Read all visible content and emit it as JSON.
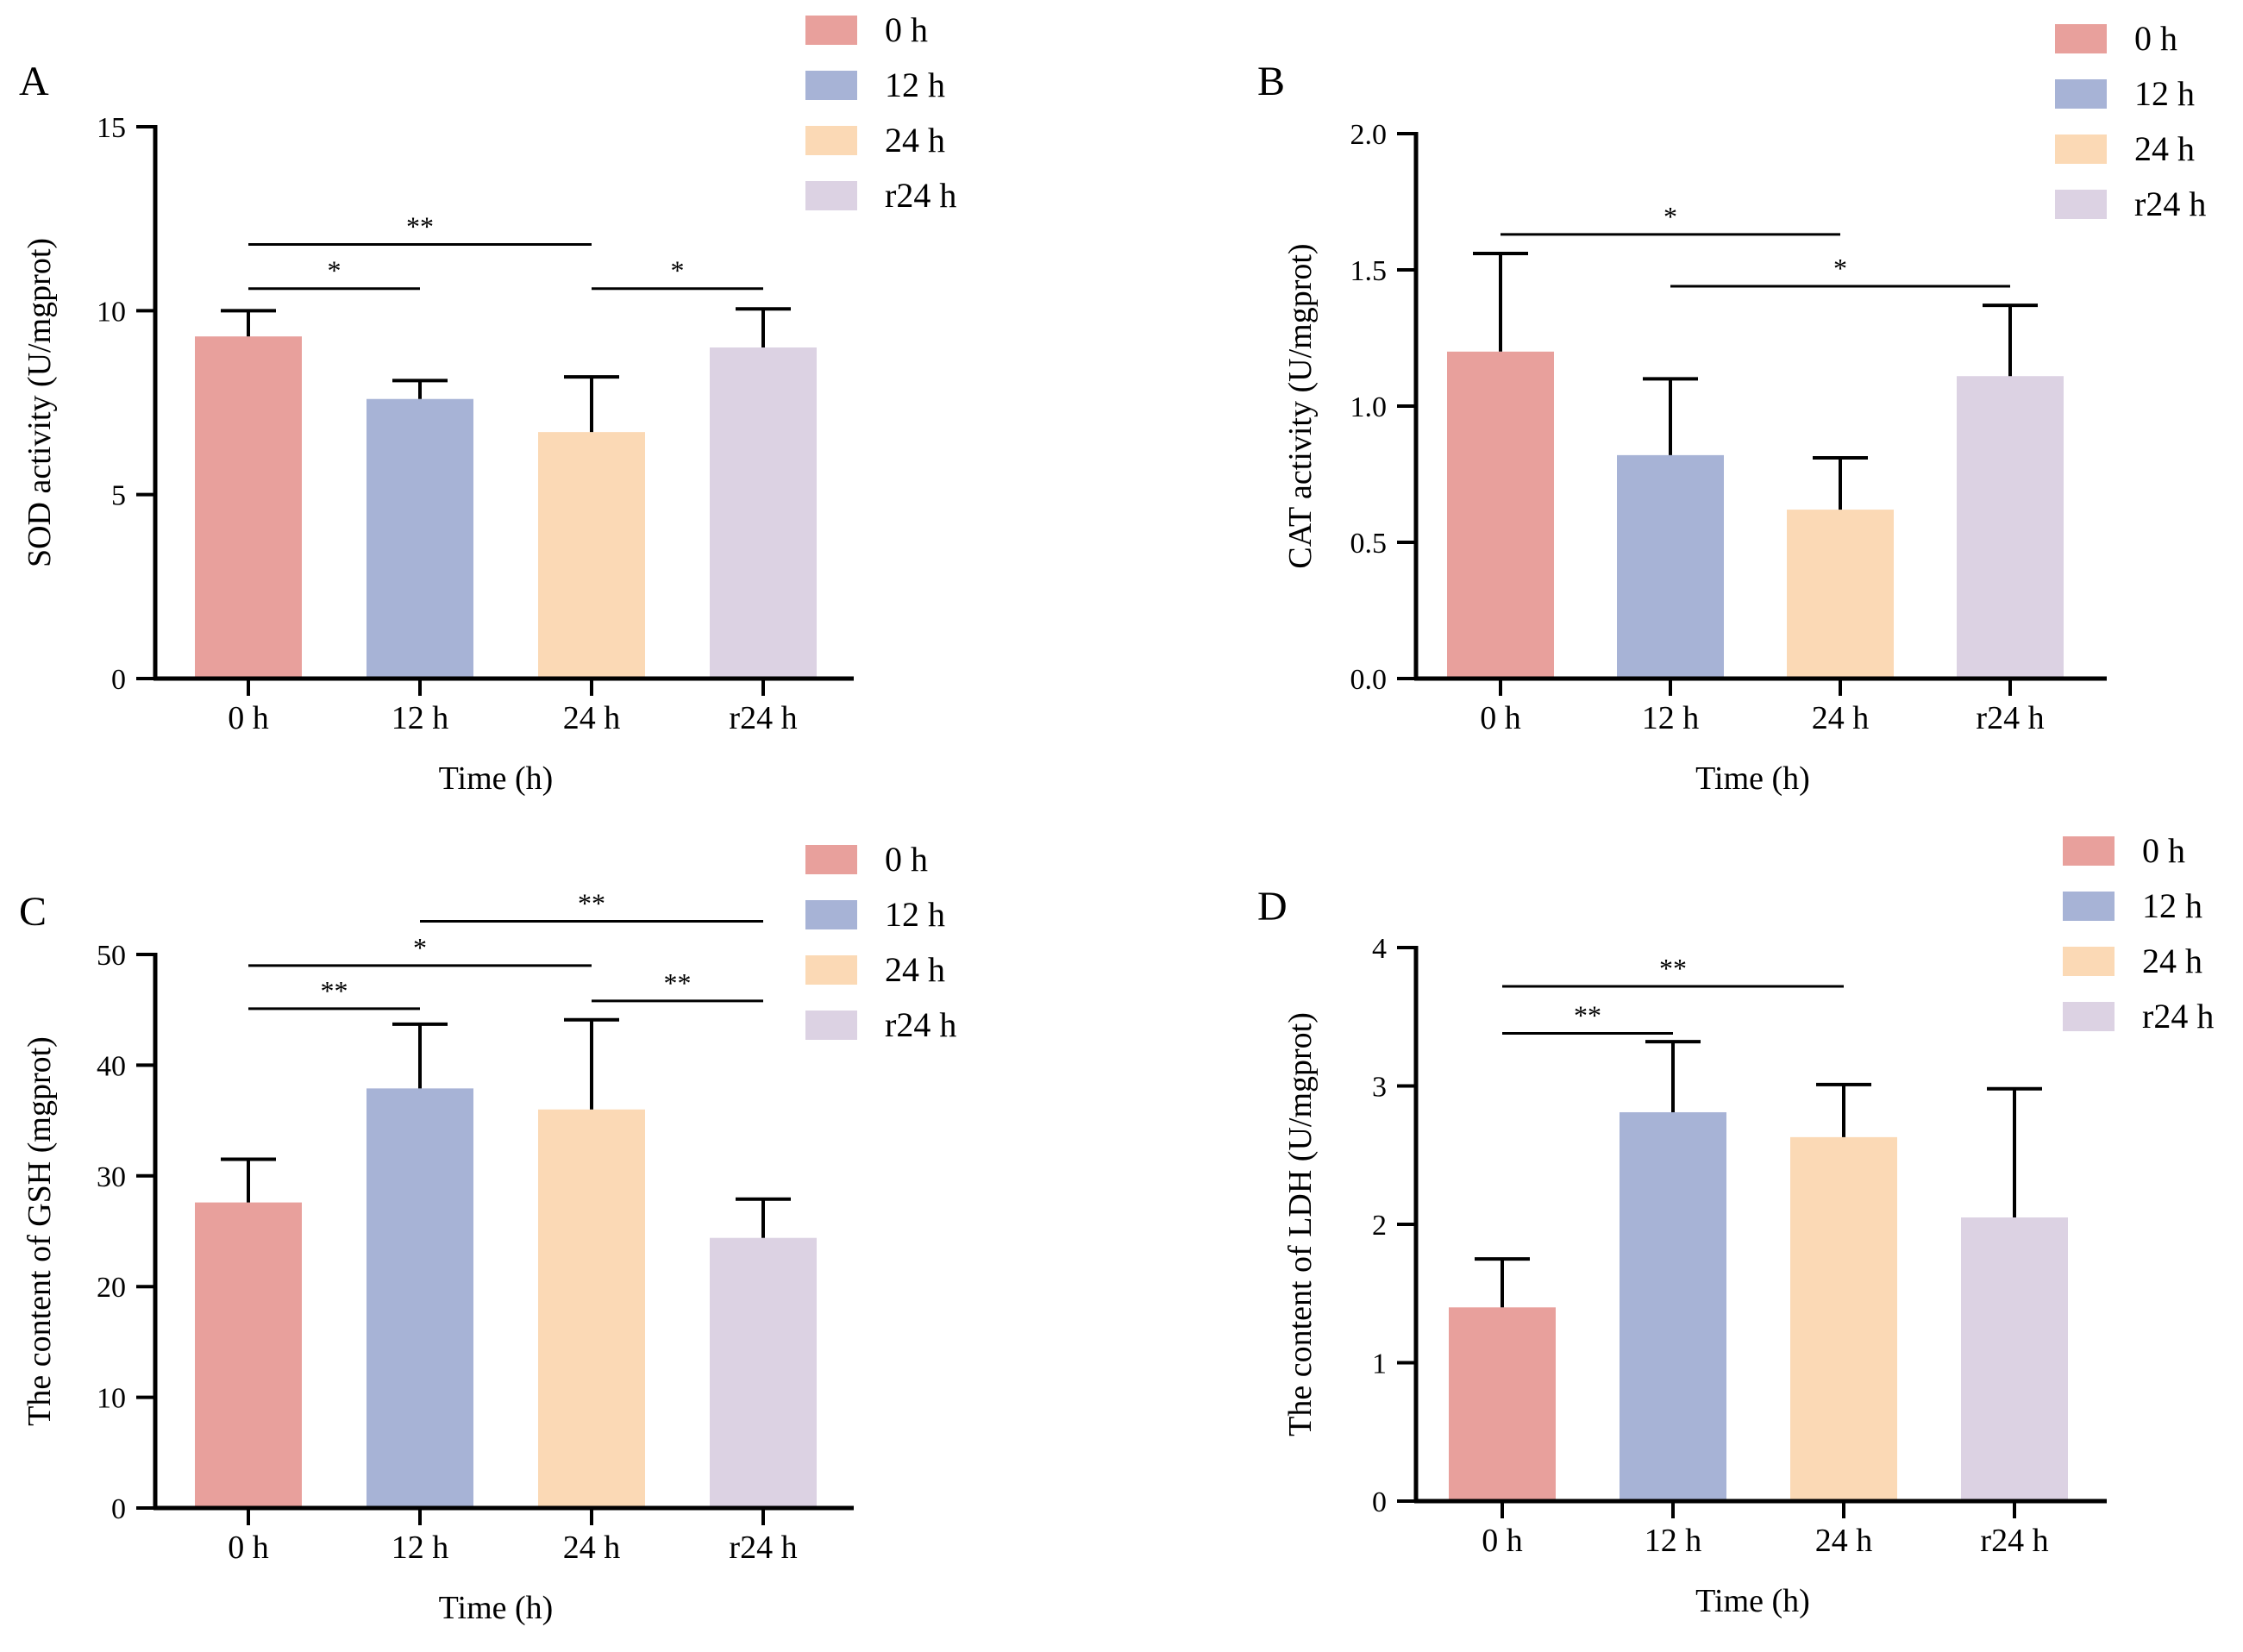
{
  "colors": {
    "t0": "#e8a09c",
    "t12": "#a7b3d6",
    "t24": "#fbd9b5",
    "r24": "#dcd2e3",
    "axis": "#000000"
  },
  "chart_data": [
    {
      "panel": "A",
      "type": "bar",
      "ylabel": "SOD activity (U/mgprot)",
      "xlabel": "Time (h)",
      "categories": [
        "0 h",
        "12 h",
        "24 h",
        "r24 h"
      ],
      "series": [
        {
          "name": "mean",
          "values": [
            9.3,
            7.6,
            6.7,
            9.0
          ],
          "errors": [
            0.7,
            0.5,
            1.5,
            1.05
          ]
        }
      ],
      "ylim": [
        0,
        15
      ],
      "yticks": [
        0,
        5,
        10,
        15
      ],
      "ytick_labels": [
        "0",
        "5",
        "10",
        "15"
      ],
      "legend": [
        "0 h",
        "12 h",
        "24 h",
        "r24 h"
      ],
      "legend_position": "top-right",
      "significance": [
        {
          "from": 0,
          "to": 1,
          "y": 10.6,
          "label": "*"
        },
        {
          "from": 0,
          "to": 2,
          "y": 11.8,
          "label": "**"
        },
        {
          "from": 2,
          "to": 3,
          "y": 10.6,
          "label": "*"
        }
      ]
    },
    {
      "panel": "B",
      "type": "bar",
      "ylabel": "CAT activity (U/mgprot)",
      "xlabel": "Time (h)",
      "categories": [
        "0 h",
        "12 h",
        "24 h",
        "r24 h"
      ],
      "series": [
        {
          "name": "mean",
          "values": [
            1.2,
            0.82,
            0.62,
            1.11
          ],
          "errors": [
            0.36,
            0.28,
            0.19,
            0.26
          ]
        }
      ],
      "ylim": [
        0,
        2.0
      ],
      "yticks": [
        0,
        0.5,
        1.0,
        1.5,
        2.0
      ],
      "ytick_labels": [
        "0.0",
        "0.5",
        "1.0",
        "1.5",
        "2.0"
      ],
      "legend": [
        "0 h",
        "12 h",
        "24 h",
        "r24 h"
      ],
      "legend_position": "top-right",
      "significance": [
        {
          "from": 0,
          "to": 2,
          "y": 1.63,
          "label": "*"
        },
        {
          "from": 1,
          "to": 3,
          "y": 1.44,
          "label": "*"
        }
      ]
    },
    {
      "panel": "C",
      "type": "bar",
      "ylabel": "The content of GSH (mgprot)",
      "xlabel": "Time (h)",
      "categories": [
        "0 h",
        "12 h",
        "24 h",
        "r24 h"
      ],
      "series": [
        {
          "name": "mean",
          "values": [
            27.6,
            37.9,
            36.0,
            24.4
          ],
          "errors": [
            3.9,
            5.8,
            8.1,
            3.5
          ]
        }
      ],
      "ylim": [
        0,
        50
      ],
      "yticks": [
        0,
        10,
        20,
        30,
        40,
        50
      ],
      "ytick_labels": [
        "0",
        "10",
        "20",
        "30",
        "40",
        "50"
      ],
      "legend": [
        "0 h",
        "12 h",
        "24 h",
        "r24 h"
      ],
      "legend_position": "top-right",
      "significance": [
        {
          "from": 0,
          "to": 1,
          "y": 45.1,
          "label": "**"
        },
        {
          "from": 0,
          "to": 2,
          "y": 49.0,
          "label": "*"
        },
        {
          "from": 2,
          "to": 3,
          "y": 45.8,
          "label": "**"
        },
        {
          "from": 1,
          "to": 3,
          "y": 53.0,
          "label": "**"
        }
      ]
    },
    {
      "panel": "D",
      "type": "bar",
      "ylabel": "The content of LDH (U/mgprot)",
      "xlabel": "Time (h)",
      "categories": [
        "0 h",
        "12 h",
        "24 h",
        "r24 h"
      ],
      "series": [
        {
          "name": "mean",
          "values": [
            1.4,
            2.81,
            2.63,
            2.05
          ],
          "errors": [
            0.35,
            0.51,
            0.38,
            0.93
          ]
        }
      ],
      "ylim": [
        0,
        4
      ],
      "yticks": [
        0,
        1,
        2,
        3,
        4
      ],
      "ytick_labels": [
        "0",
        "1",
        "2",
        "3",
        "4"
      ],
      "legend": [
        "0 h",
        "12 h",
        "24 h",
        "r24 h"
      ],
      "legend_position": "top-right",
      "significance": [
        {
          "from": 0,
          "to": 1,
          "y": 3.38,
          "label": "**"
        },
        {
          "from": 0,
          "to": 2,
          "y": 3.72,
          "label": "**"
        }
      ]
    }
  ]
}
